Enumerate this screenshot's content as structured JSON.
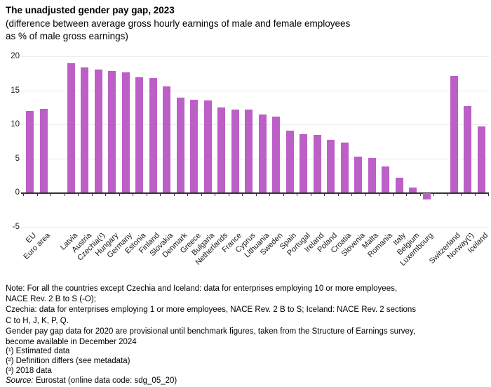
{
  "chart_data": {
    "type": "bar",
    "title": "The unadjusted gender pay gap, 2023",
    "subtitle": "(difference between average gross hourly earnings of male and female employees as % of male gross earnings)",
    "subtitle_lines": [
      "(difference between average gross hourly earnings of male and female employees",
      "as % of male gross earnings)"
    ],
    "xlabel": "",
    "ylabel": "",
    "ylim": [
      -5,
      20
    ],
    "yticks": [
      20,
      15,
      10,
      5,
      0,
      -5
    ],
    "grid": "horizontal-light",
    "legend": "none",
    "bar_color": "#BC5FC7",
    "axis_color": "#333333",
    "categories": [
      "EU",
      "Euro area",
      "Latvia",
      "Austria",
      "Czechia(¹)",
      "Hungary",
      "Germany",
      "Estonia",
      "Finland",
      "Slovakia",
      "Denmark",
      "Greece",
      "Bulgaria",
      "Netherlands",
      "France",
      "Cyprus",
      "Lithuania",
      "Sweden",
      "Spain",
      "Portugal",
      "Ireland",
      "Poland",
      "Croatia",
      "Slovenia",
      "Malta",
      "Romania",
      "Italy",
      "Belgium",
      "Luxembourg",
      "Switzerland",
      "Norway(¹)",
      "Iceland"
    ],
    "values": [
      12.0,
      12.3,
      19.0,
      18.3,
      18.0,
      17.8,
      17.6,
      16.9,
      16.8,
      15.6,
      13.9,
      13.6,
      13.5,
      12.5,
      12.2,
      12.2,
      11.4,
      11.1,
      9.1,
      8.6,
      8.5,
      7.7,
      7.3,
      5.3,
      5.1,
      3.8,
      2.2,
      0.7,
      -0.9,
      17.1,
      12.7,
      9.7
    ],
    "gaps_after": [
      1,
      28
    ]
  },
  "notes": {
    "lines": [
      "Note: For all the countries except Czechia and Iceland: data for enterprises employing 10 or more employees,",
      "NACE Rev. 2 B to S (-O);",
      "Czechia: data for enterprises employing 1 or more employees, NACE Rev. 2 B to S; Iceland: NACE Rev. 2 sections",
      "C to H, J, K, P, Q.",
      "Gender pay gap data for 2020 are provisional until benchmark figures, taken from the Structure of Earnings survey,",
      "become available in December 2024"
    ]
  },
  "footnotes": {
    "lines": [
      "(¹) Estimated data",
      "(²) Definition differs (see metadata)",
      "(³) 2018 data"
    ]
  },
  "source": {
    "prefix": "Source:",
    "text": " Eurostat (online data code: sdg_05_20)"
  }
}
